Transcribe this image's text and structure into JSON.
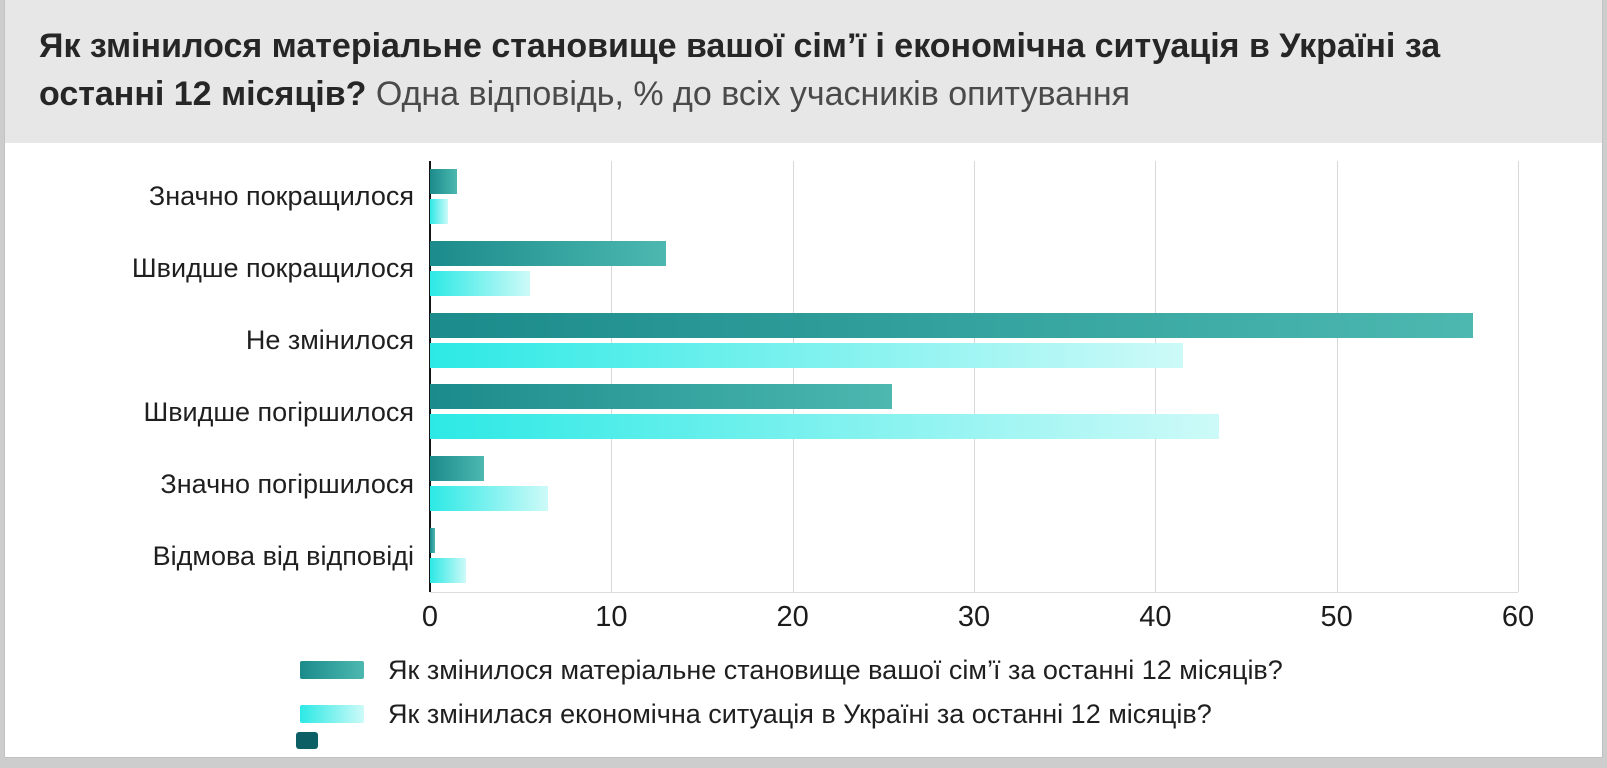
{
  "header": {
    "title_main": "Як змінилося матеріальне становище вашої сім’ї і економічна ситуація в Україні за останні 12 місяців?",
    "title_sub": "Одна відповідь, % до всіх учасників опитування"
  },
  "chart_data": {
    "type": "bar",
    "orientation": "horizontal",
    "title": "Як змінилося матеріальне становище вашої сім’ї і економічна ситуація в Україні за останні 12 місяців?",
    "subtitle": "Одна відповідь, % до всіх учасників опитування",
    "categories": [
      "Значно покращилося",
      "Швидше покращилося",
      "Не змінилося",
      "Швидше погіршилося",
      "Значно погіршилося",
      "Відмова від відповіді"
    ],
    "series": [
      {
        "name": "Як змінилося матеріальне становище вашої сім’ї за останні 12 місяців?",
        "values": [
          1.5,
          13,
          57.5,
          25.5,
          3,
          0.3
        ],
        "color_start": "#1b8b8b",
        "color_end": "#4cb8b0"
      },
      {
        "name": "Як змінилася економічна ситуація в Україні за останні 12 місяців?",
        "values": [
          1,
          5.5,
          41.5,
          43.5,
          6.5,
          2
        ],
        "color_start": "#2ce9e5",
        "color_end": "#cdfaf8"
      }
    ],
    "xlim": [
      0,
      60
    ],
    "xticks": [
      0,
      10,
      20,
      30,
      40,
      50,
      60
    ],
    "grid": true,
    "legend_position": "bottom-left"
  }
}
